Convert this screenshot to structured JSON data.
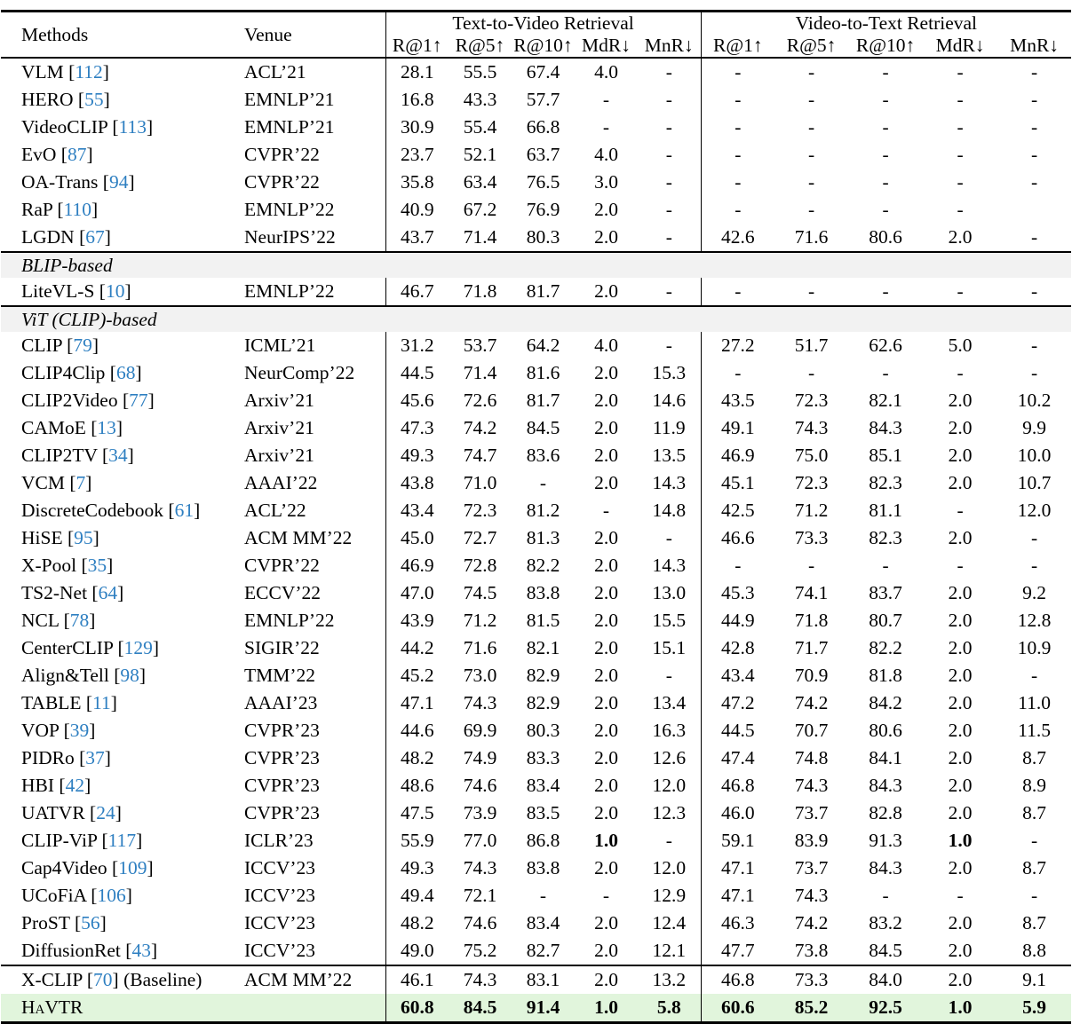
{
  "colors": {
    "citation_blue": "#2e7fc1",
    "section_row_bg": "#f2f2f2",
    "highlight_row_bg": "#e1f5dc",
    "rule": "#000000"
  },
  "table": {
    "header": {
      "methods": "Methods",
      "venue": "Venue",
      "group_t2v": "Text-to-Video Retrieval",
      "group_v2t": "Video-to-Text Retrieval",
      "metrics": [
        "R@1↑",
        "R@5↑",
        "R@10↑",
        "MdR↓",
        "MnR↓"
      ]
    },
    "rows": [
      {
        "type": "data",
        "method": "VLM",
        "cite": "112",
        "venue": "ACL’21",
        "t2v": [
          "28.1",
          "55.5",
          "67.4",
          "4.0",
          "-"
        ],
        "v2t": [
          "-",
          "-",
          "-",
          "-",
          "-"
        ]
      },
      {
        "type": "data",
        "method": "HERO",
        "cite": "55",
        "venue": "EMNLP’21",
        "t2v": [
          "16.8",
          "43.3",
          "57.7",
          "-",
          "-"
        ],
        "v2t": [
          "-",
          "-",
          "-",
          "-",
          "-"
        ]
      },
      {
        "type": "data",
        "method": "VideoCLIP",
        "cite": "113",
        "venue": "EMNLP’21",
        "t2v": [
          "30.9",
          "55.4",
          "66.8",
          "-",
          "-"
        ],
        "v2t": [
          "-",
          "-",
          "-",
          "-",
          "-"
        ]
      },
      {
        "type": "data",
        "method": "EvO",
        "cite": "87",
        "venue": "CVPR’22",
        "t2v": [
          "23.7",
          "52.1",
          "63.7",
          "4.0",
          "-"
        ],
        "v2t": [
          "-",
          "-",
          "-",
          "-",
          "-"
        ]
      },
      {
        "type": "data",
        "method": "OA-Trans",
        "cite": "94",
        "venue": "CVPR’22",
        "t2v": [
          "35.8",
          "63.4",
          "76.5",
          "3.0",
          "-"
        ],
        "v2t": [
          "-",
          "-",
          "-",
          "-",
          "-"
        ]
      },
      {
        "type": "data",
        "method": "RaP",
        "cite": "110",
        "venue": "EMNLP’22",
        "t2v": [
          "40.9",
          "67.2",
          "76.9",
          "2.0",
          "-"
        ],
        "v2t": [
          "-",
          "-",
          "-",
          "-",
          ""
        ]
      },
      {
        "type": "data",
        "method": "LGDN",
        "cite": "67",
        "venue": "NeurIPS’22",
        "t2v": [
          "43.7",
          "71.4",
          "80.3",
          "2.0",
          "-"
        ],
        "v2t": [
          "42.6",
          "71.6",
          "80.6",
          "2.0",
          "-"
        ]
      },
      {
        "type": "section",
        "label": "BLIP-based"
      },
      {
        "type": "data",
        "method": "LiteVL-S",
        "cite": "10",
        "venue": "EMNLP’22",
        "t2v": [
          "46.7",
          "71.8",
          "81.7",
          "2.0",
          "-"
        ],
        "v2t": [
          "-",
          "-",
          "-",
          "-",
          "-"
        ]
      },
      {
        "type": "section",
        "label": "ViT (CLIP)-based"
      },
      {
        "type": "data",
        "method": "CLIP",
        "cite": "79",
        "venue": "ICML’21",
        "t2v": [
          "31.2",
          "53.7",
          "64.2",
          "4.0",
          "-"
        ],
        "v2t": [
          "27.2",
          "51.7",
          "62.6",
          "5.0",
          "-"
        ]
      },
      {
        "type": "data",
        "method": "CLIP4Clip",
        "cite": "68",
        "venue": "NeurComp’22",
        "t2v": [
          "44.5",
          "71.4",
          "81.6",
          "2.0",
          "15.3"
        ],
        "v2t": [
          "-",
          "-",
          "-",
          "-",
          "-"
        ]
      },
      {
        "type": "data",
        "method": "CLIP2Video",
        "cite": "77",
        "venue": "Arxiv’21",
        "t2v": [
          "45.6",
          "72.6",
          "81.7",
          "2.0",
          "14.6"
        ],
        "v2t": [
          "43.5",
          "72.3",
          "82.1",
          "2.0",
          "10.2"
        ]
      },
      {
        "type": "data",
        "method": "CAMoE",
        "cite": "13",
        "venue": "Arxiv’21",
        "t2v": [
          "47.3",
          "74.2",
          "84.5",
          "2.0",
          "11.9"
        ],
        "v2t": [
          "49.1",
          "74.3",
          "84.3",
          "2.0",
          "9.9"
        ]
      },
      {
        "type": "data",
        "method": "CLIP2TV",
        "cite": "34",
        "venue": "Arxiv’21",
        "t2v": [
          "49.3",
          "74.7",
          "83.6",
          "2.0",
          "13.5"
        ],
        "v2t": [
          "46.9",
          "75.0",
          "85.1",
          "2.0",
          "10.0"
        ]
      },
      {
        "type": "data",
        "method": "VCM",
        "cite": "7",
        "venue": "AAAI’22",
        "t2v": [
          "43.8",
          "71.0",
          "-",
          "2.0",
          "14.3"
        ],
        "v2t": [
          "45.1",
          "72.3",
          "82.3",
          "2.0",
          "10.7"
        ]
      },
      {
        "type": "data",
        "method": "DiscreteCodebook",
        "cite": "61",
        "venue": "ACL’22",
        "t2v": [
          "43.4",
          "72.3",
          "81.2",
          "-",
          "14.8"
        ],
        "v2t": [
          "42.5",
          "71.2",
          "81.1",
          "-",
          "12.0"
        ]
      },
      {
        "type": "data",
        "method": "HiSE",
        "cite": "95",
        "venue": "ACM MM’22",
        "t2v": [
          "45.0",
          "72.7",
          "81.3",
          "2.0",
          "-"
        ],
        "v2t": [
          "46.6",
          "73.3",
          "82.3",
          "2.0",
          "-"
        ]
      },
      {
        "type": "data",
        "method": "X-Pool",
        "cite": "35",
        "venue": "CVPR’22",
        "t2v": [
          "46.9",
          "72.8",
          "82.2",
          "2.0",
          "14.3"
        ],
        "v2t": [
          "-",
          "-",
          "-",
          "-",
          "-"
        ]
      },
      {
        "type": "data",
        "method": "TS2-Net",
        "cite": "64",
        "venue": "ECCV’22",
        "t2v": [
          "47.0",
          "74.5",
          "83.8",
          "2.0",
          "13.0"
        ],
        "v2t": [
          "45.3",
          "74.1",
          "83.7",
          "2.0",
          "9.2"
        ]
      },
      {
        "type": "data",
        "method": "NCL",
        "cite": "78",
        "venue": "EMNLP’22",
        "t2v": [
          "43.9",
          "71.2",
          "81.5",
          "2.0",
          "15.5"
        ],
        "v2t": [
          "44.9",
          "71.8",
          "80.7",
          "2.0",
          "12.8"
        ]
      },
      {
        "type": "data",
        "method": "CenterCLIP",
        "cite": "129",
        "venue": "SIGIR’22",
        "t2v": [
          "44.2",
          "71.6",
          "82.1",
          "2.0",
          "15.1"
        ],
        "v2t": [
          "42.8",
          "71.7",
          "82.2",
          "2.0",
          "10.9"
        ]
      },
      {
        "type": "data",
        "method": "Align&Tell",
        "cite": "98",
        "venue": "TMM’22",
        "t2v": [
          "45.2",
          "73.0",
          "82.9",
          "2.0",
          "-"
        ],
        "v2t": [
          "43.4",
          "70.9",
          "81.8",
          "2.0",
          "-"
        ]
      },
      {
        "type": "data",
        "method": "TABLE",
        "cite": "11",
        "venue": "AAAI’23",
        "t2v": [
          "47.1",
          "74.3",
          "82.9",
          "2.0",
          "13.4"
        ],
        "v2t": [
          "47.2",
          "74.2",
          "84.2",
          "2.0",
          "11.0"
        ]
      },
      {
        "type": "data",
        "method": "VOP",
        "cite": "39",
        "venue": "CVPR’23",
        "t2v": [
          "44.6",
          "69.9",
          "80.3",
          "2.0",
          "16.3"
        ],
        "v2t": [
          "44.5",
          "70.7",
          "80.6",
          "2.0",
          "11.5"
        ]
      },
      {
        "type": "data",
        "method": "PIDRo",
        "cite": "37",
        "venue": "CVPR’23",
        "t2v": [
          "48.2",
          "74.9",
          "83.3",
          "2.0",
          "12.6"
        ],
        "v2t": [
          "47.4",
          "74.8",
          "84.1",
          "2.0",
          "8.7"
        ]
      },
      {
        "type": "data",
        "method": "HBI",
        "cite": "42",
        "venue": "CVPR’23",
        "t2v": [
          "48.6",
          "74.6",
          "83.4",
          "2.0",
          "12.0"
        ],
        "v2t": [
          "46.8",
          "74.3",
          "84.3",
          "2.0",
          "8.9"
        ]
      },
      {
        "type": "data",
        "method": "UATVR",
        "cite": "24",
        "venue": "CVPR’23",
        "t2v": [
          "47.5",
          "73.9",
          "83.5",
          "2.0",
          "12.3"
        ],
        "v2t": [
          "46.0",
          "73.7",
          "82.8",
          "2.0",
          "8.7"
        ]
      },
      {
        "type": "data",
        "method": "CLIP-ViP",
        "cite": "117",
        "venue": "ICLR’23",
        "t2v": [
          "55.9",
          "77.0",
          "86.8",
          "1.0",
          "-"
        ],
        "v2t": [
          "59.1",
          "83.9",
          "91.3",
          "1.0",
          "-"
        ],
        "bold_t2v": [
          3
        ],
        "bold_v2t": [
          3
        ]
      },
      {
        "type": "data",
        "method": "Cap4Video",
        "cite": "109",
        "venue": "ICCV’23",
        "t2v": [
          "49.3",
          "74.3",
          "83.8",
          "2.0",
          "12.0"
        ],
        "v2t": [
          "47.1",
          "73.7",
          "84.3",
          "2.0",
          "8.7"
        ]
      },
      {
        "type": "data",
        "method": "UCoFiA",
        "cite": "106",
        "venue": "ICCV’23",
        "t2v": [
          "49.4",
          "72.1",
          "-",
          "-",
          "12.9"
        ],
        "v2t": [
          "47.1",
          "74.3",
          "-",
          "-",
          "-"
        ]
      },
      {
        "type": "data",
        "method": "ProST",
        "cite": "56",
        "venue": "ICCV’23",
        "t2v": [
          "48.2",
          "74.6",
          "83.4",
          "2.0",
          "12.4"
        ],
        "v2t": [
          "46.3",
          "74.2",
          "83.2",
          "2.0",
          "8.7"
        ]
      },
      {
        "type": "data",
        "method": "DiffusionRet",
        "cite": "43",
        "venue": "ICCV’23",
        "t2v": [
          "49.0",
          "75.2",
          "82.7",
          "2.0",
          "12.1"
        ],
        "v2t": [
          "47.7",
          "73.8",
          "84.5",
          "2.0",
          "8.8"
        ]
      },
      {
        "type": "data",
        "method": "X-CLIP",
        "cite": "70",
        "suffix": " (Baseline)",
        "venue": "ACM MM’22",
        "topline": true,
        "t2v": [
          "46.1",
          "74.3",
          "83.1",
          "2.0",
          "13.2"
        ],
        "v2t": [
          "46.8",
          "73.3",
          "84.0",
          "2.0",
          "9.1"
        ]
      },
      {
        "type": "data",
        "method": "HaVTR",
        "smallcaps": true,
        "highlight": true,
        "bold_all": true,
        "venue": "",
        "t2v": [
          "60.8",
          "84.5",
          "91.4",
          "1.0",
          "5.8"
        ],
        "v2t": [
          "60.6",
          "85.2",
          "92.5",
          "1.0",
          "5.9"
        ]
      }
    ]
  }
}
